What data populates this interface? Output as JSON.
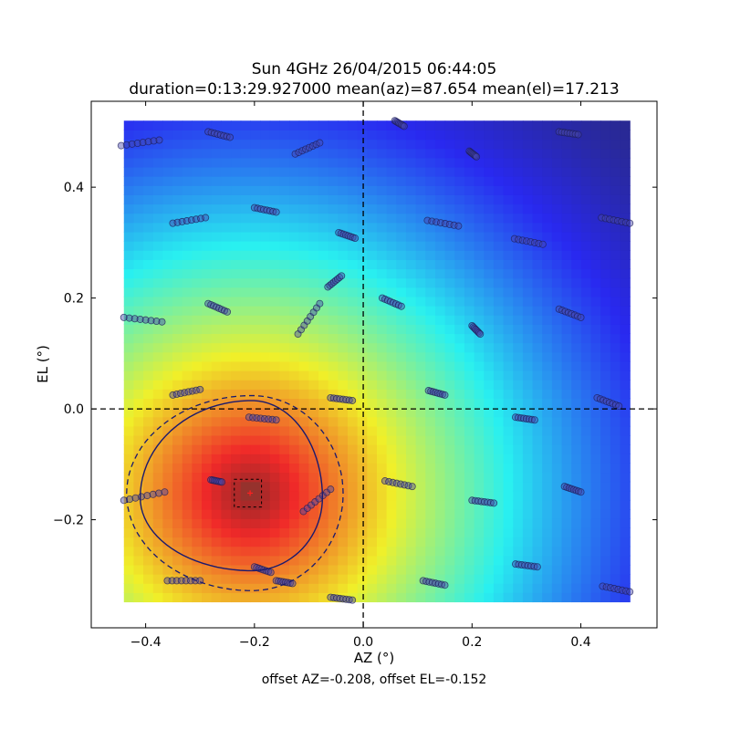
{
  "chart_data": {
    "type": "heatmap",
    "title": "Sun 4GHz 26/04/2015 06:44:05",
    "subtitle": "duration=0:13:29.927000 mean(az)=87.654 mean(el)=17.213",
    "xlabel": "AZ (°)",
    "ylabel": "EL (°)",
    "footer": "offset AZ=-0.208, offset EL=-0.152",
    "xlim": [
      -0.5,
      0.54
    ],
    "ylim": [
      -0.395,
      0.555
    ],
    "xticks": [
      -0.4,
      -0.2,
      0.0,
      0.2,
      0.4
    ],
    "xtick_labels": [
      "−0.4",
      "−0.2",
      "0.0",
      "0.2",
      "0.4"
    ],
    "yticks": [
      -0.2,
      0.0,
      0.2,
      0.4
    ],
    "ytick_labels": [
      "−0.2",
      "0.0",
      "0.2",
      "0.4"
    ],
    "grid": false,
    "colormap": "jet",
    "heatmap_extent": {
      "x": [
        -0.44,
        0.49
      ],
      "y": [
        -0.348,
        0.52
      ]
    },
    "peak": {
      "az": -0.208,
      "el": -0.152
    },
    "crosshair": {
      "az": 0.0,
      "el": 0.0
    },
    "offset_box": {
      "az": [
        -0.237,
        -0.187
      ],
      "el": [
        -0.177,
        -0.127
      ]
    },
    "contour_solid": {
      "center": [
        -0.205,
        -0.16
      ],
      "radius_az": [
        0.13,
        0.205
      ],
      "radius_el": [
        0.175,
        0.132
      ]
    },
    "contour_dashed": {
      "center": [
        -0.205,
        -0.153
      ],
      "radius_az": [
        0.168,
        0.23
      ],
      "radius_el": [
        0.177,
        0.175
      ]
    },
    "scan_segments": [
      {
        "x0": -0.445,
        "y0": 0.475,
        "x1": -0.375,
        "y1": 0.485
      },
      {
        "x0": -0.285,
        "y0": 0.5,
        "x1": -0.245,
        "y1": 0.49
      },
      {
        "x0": -0.125,
        "y0": 0.46,
        "x1": -0.08,
        "y1": 0.48
      },
      {
        "x0": 0.058,
        "y0": 0.52,
        "x1": 0.075,
        "y1": 0.51
      },
      {
        "x0": 0.195,
        "y0": 0.465,
        "x1": 0.208,
        "y1": 0.455
      },
      {
        "x0": 0.36,
        "y0": 0.5,
        "x1": 0.395,
        "y1": 0.495
      },
      {
        "x0": -0.35,
        "y0": 0.335,
        "x1": -0.29,
        "y1": 0.345
      },
      {
        "x0": -0.2,
        "y0": 0.363,
        "x1": -0.16,
        "y1": 0.355
      },
      {
        "x0": -0.045,
        "y0": 0.318,
        "x1": -0.015,
        "y1": 0.308
      },
      {
        "x0": 0.118,
        "y0": 0.34,
        "x1": 0.175,
        "y1": 0.33
      },
      {
        "x0": 0.278,
        "y0": 0.307,
        "x1": 0.33,
        "y1": 0.297
      },
      {
        "x0": 0.438,
        "y0": 0.345,
        "x1": 0.49,
        "y1": 0.335
      },
      {
        "x0": -0.44,
        "y0": 0.165,
        "x1": -0.37,
        "y1": 0.157
      },
      {
        "x0": -0.285,
        "y0": 0.19,
        "x1": -0.25,
        "y1": 0.175
      },
      {
        "x0": -0.12,
        "y0": 0.135,
        "x1": -0.08,
        "y1": 0.19
      },
      {
        "x0": -0.065,
        "y0": 0.22,
        "x1": -0.04,
        "y1": 0.24
      },
      {
        "x0": 0.035,
        "y0": 0.2,
        "x1": 0.07,
        "y1": 0.185
      },
      {
        "x0": 0.2,
        "y0": 0.15,
        "x1": 0.215,
        "y1": 0.135
      },
      {
        "x0": 0.36,
        "y0": 0.18,
        "x1": 0.4,
        "y1": 0.165
      },
      {
        "x0": -0.35,
        "y0": 0.025,
        "x1": -0.3,
        "y1": 0.035
      },
      {
        "x0": -0.21,
        "y0": -0.015,
        "x1": -0.16,
        "y1": -0.02
      },
      {
        "x0": -0.06,
        "y0": 0.02,
        "x1": -0.02,
        "y1": 0.015
      },
      {
        "x0": 0.12,
        "y0": 0.033,
        "x1": 0.15,
        "y1": 0.025
      },
      {
        "x0": 0.28,
        "y0": -0.015,
        "x1": 0.315,
        "y1": -0.02
      },
      {
        "x0": 0.43,
        "y0": 0.02,
        "x1": 0.47,
        "y1": 0.005
      },
      {
        "x0": -0.44,
        "y0": -0.165,
        "x1": -0.365,
        "y1": -0.15
      },
      {
        "x0": -0.28,
        "y0": -0.128,
        "x1": -0.26,
        "y1": -0.132
      },
      {
        "x0": -0.11,
        "y0": -0.185,
        "x1": -0.06,
        "y1": -0.145
      },
      {
        "x0": 0.04,
        "y0": -0.13,
        "x1": 0.09,
        "y1": -0.14
      },
      {
        "x0": 0.2,
        "y0": -0.165,
        "x1": 0.24,
        "y1": -0.17
      },
      {
        "x0": 0.37,
        "y0": -0.14,
        "x1": 0.4,
        "y1": -0.15
      },
      {
        "x0": -0.36,
        "y0": -0.31,
        "x1": -0.3,
        "y1": -0.31
      },
      {
        "x0": -0.2,
        "y0": -0.285,
        "x1": -0.17,
        "y1": -0.295
      },
      {
        "x0": -0.16,
        "y0": -0.31,
        "x1": -0.13,
        "y1": -0.315
      },
      {
        "x0": -0.06,
        "y0": -0.34,
        "x1": -0.02,
        "y1": -0.345
      },
      {
        "x0": 0.11,
        "y0": -0.31,
        "x1": 0.15,
        "y1": -0.318
      },
      {
        "x0": 0.28,
        "y0": -0.28,
        "x1": 0.32,
        "y1": -0.285
      },
      {
        "x0": 0.44,
        "y0": -0.32,
        "x1": 0.49,
        "y1": -0.33
      }
    ]
  }
}
